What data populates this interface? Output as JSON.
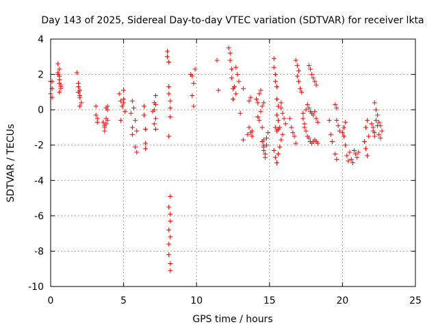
{
  "chart_data": {
    "type": "scatter",
    "title": "Day 143 of 2025, Sidereal Day-to-day VTEC variation (SDTVAR) for receiver lkta",
    "xlabel": "GPS time / hours",
    "ylabel": "SDTVAR / TECUs",
    "xlim": [
      0,
      25
    ],
    "ylim": [
      -10,
      4
    ],
    "xticks": [
      "0",
      "5",
      "10",
      "15",
      "20",
      "25"
    ],
    "yticks": [
      "4",
      "2",
      "0",
      "-2",
      "-4",
      "-6",
      "-8",
      "-10"
    ],
    "grid": true,
    "marker": "plus",
    "color": "#ff0000",
    "series": [
      {
        "name": "SDTVAR",
        "x": [
          0.0,
          0.0,
          0.0,
          0.1,
          0.1,
          0.1,
          0.5,
          0.5,
          0.6,
          0.6,
          0.6,
          0.6,
          0.7,
          0.7,
          0.5,
          0.6,
          0.7,
          1.8,
          1.9,
          1.9,
          2.0,
          2.0,
          2.1,
          1.9,
          2.0,
          2.0,
          3.1,
          3.1,
          3.2,
          3.2,
          3.6,
          3.7,
          3.7,
          3.8,
          3.8,
          3.9,
          3.7,
          3.8,
          3.9,
          3.9,
          4.7,
          4.8,
          4.9,
          5.0,
          5.0,
          5.1,
          5.0,
          4.8,
          5.5,
          5.6,
          5.6,
          5.7,
          5.6,
          5.8,
          5.9,
          5.8,
          5.9,
          6.4,
          6.4,
          6.5,
          6.5,
          6.5,
          7.0,
          7.1,
          7.2,
          7.1,
          7.2,
          7.2,
          7.1,
          7.2,
          8.0,
          8.0,
          8.1,
          8.1,
          8.1,
          8.2,
          8.2,
          8.2,
          8.1,
          8.2,
          8.1,
          8.2,
          8.2,
          8.1,
          8.2,
          8.1,
          8.1,
          8.2,
          8.2,
          9.6,
          9.7,
          9.7,
          9.8,
          9.8,
          9.9,
          11.4,
          11.5,
          12.2,
          12.3,
          12.3,
          12.4,
          12.4,
          12.5,
          12.5,
          12.7,
          12.8,
          12.9,
          12.6,
          12.7,
          13.2,
          13.0,
          13.2,
          13.5,
          13.6,
          13.7,
          13.8,
          13.6,
          13.7,
          13.8,
          14.1,
          14.2,
          14.2,
          14.3,
          14.3,
          14.4,
          14.5,
          14.6,
          14.6,
          14.6,
          14.7,
          14.7,
          14.8,
          14.8,
          14.9,
          14.4,
          14.5,
          14.6,
          14.5,
          14.6,
          15.3,
          15.3,
          15.4,
          15.4,
          15.5,
          15.5,
          15.6,
          15.5,
          15.6,
          15.7,
          15.8,
          15.8,
          15.9,
          16.0,
          16.1,
          15.4,
          15.5,
          15.6,
          15.3,
          15.4,
          15.5,
          15.6,
          15.7,
          15.8,
          15.9,
          16.4,
          16.5,
          16.6,
          16.7,
          16.8,
          16.8,
          16.9,
          17.0,
          16.9,
          17.0,
          17.1,
          17.2,
          17.3,
          17.3,
          17.4,
          17.5,
          17.6,
          17.7,
          17.8,
          17.9,
          18.0,
          18.1,
          18.2,
          18.3,
          17.7,
          17.8,
          17.9,
          18.0,
          18.1,
          18.2,
          17.5,
          17.6,
          17.7,
          17.8,
          17.9,
          18.0,
          18.1,
          18.2,
          18.3,
          17.4,
          19.1,
          19.2,
          19.3,
          19.5,
          19.6,
          19.6,
          19.7,
          19.8,
          19.5,
          19.6,
          20.0,
          20.1,
          20.2,
          20.3,
          20.4,
          20.5,
          20.6,
          20.7,
          20.8,
          20.9,
          21.0,
          21.1,
          20.1,
          20.2,
          21.5,
          21.6,
          21.7,
          21.8,
          21.6,
          21.7,
          22.0,
          22.1,
          22.2,
          22.3,
          22.4,
          22.5,
          22.6,
          22.7,
          22.2,
          22.3,
          22.4,
          22.5,
          22.6,
          22.1,
          22.2
        ],
        "y": [
          1.6,
          1.6,
          0.9,
          1.6,
          1.2,
          0.7,
          2.6,
          2.0,
          1.5,
          1.0,
          2.3,
          1.9,
          1.4,
          1.2,
          2.1,
          1.7,
          1.3,
          2.1,
          1.5,
          1.0,
          0.7,
          0.2,
          0.4,
          1.3,
          1.1,
          0.8,
          0.2,
          -0.3,
          -0.5,
          -0.7,
          -0.7,
          -1.2,
          -0.9,
          -0.5,
          0.1,
          0.2,
          -1.0,
          -0.8,
          -0.6,
          0.0,
          0.9,
          0.5,
          0.2,
          1.1,
          0.4,
          -0.1,
          0.6,
          -0.6,
          -0.2,
          -1.0,
          -1.4,
          0.1,
          0.5,
          -0.6,
          -1.2,
          -2.1,
          -2.4,
          0.2,
          -0.3,
          -1.1,
          -1.9,
          -2.2,
          -0.1,
          0.4,
          0.8,
          -0.8,
          -1.1,
          -0.5,
          0.0,
          0.3,
          3.3,
          3.0,
          2.7,
          1.3,
          0.9,
          0.5,
          0.1,
          -0.4,
          -1.5,
          -4.9,
          -5.5,
          -5.9,
          -6.3,
          -6.8,
          -7.2,
          -7.6,
          -8.2,
          -8.7,
          -9.1,
          2.0,
          1.9,
          0.8,
          1.5,
          0.2,
          2.3,
          2.8,
          1.1,
          3.5,
          3.2,
          2.8,
          2.3,
          1.8,
          1.2,
          0.6,
          2.4,
          2.0,
          1.6,
          1.3,
          0.9,
          1.2,
          -0.2,
          -1.7,
          -1.4,
          0.5,
          0.7,
          -1.2,
          -1.0,
          -1.3,
          -1.5,
          0.6,
          0.4,
          -0.4,
          -0.6,
          0.9,
          1.1,
          -1.0,
          -1.7,
          -2.1,
          -2.3,
          -2.5,
          -2.7,
          -2.0,
          -1.6,
          -1.3,
          -0.1,
          0.2,
          0.4,
          -1.8,
          -2.0,
          2.9,
          2.4,
          2.0,
          1.6,
          1.3,
          0.6,
          0.2,
          -0.3,
          -0.6,
          -1.0,
          0.4,
          0.1,
          -0.2,
          -0.5,
          -0.8,
          -1.0,
          -1.2,
          -1.1,
          -2.3,
          -2.7,
          -3.0,
          -2.5,
          -2.1,
          -1.7,
          -1.4,
          -0.5,
          -1.0,
          -1.3,
          -1.5,
          -1.9,
          2.8,
          2.5,
          2.2,
          1.9,
          1.6,
          1.2,
          1.0,
          -0.2,
          -0.5,
          -1.0,
          -1.2,
          -1.5,
          -1.6,
          -1.8,
          -1.9,
          -1.8,
          -1.7,
          -1.8,
          -1.9,
          2.5,
          2.3,
          2.0,
          1.8,
          1.6,
          1.4,
          0.0,
          0.3,
          0.1,
          -0.1,
          -0.2,
          -0.3,
          -0.1,
          -0.5,
          -0.7,
          -0.8,
          -0.6,
          -1.4,
          -1.8,
          -2.5,
          -2.8,
          -0.6,
          -0.9,
          -1.2,
          0.3,
          0.1,
          -1.3,
          -1.5,
          -2.0,
          -2.6,
          -2.9,
          -2.4,
          -2.8,
          -3.0,
          -2.3,
          -2.5,
          -2.7,
          -2.4,
          -1.0,
          -0.7,
          -1.8,
          -2.2,
          -2.6,
          -1.5,
          -1.0,
          -0.6,
          -0.8,
          -1.2,
          -1.5,
          -0.6,
          -0.9,
          -1.4,
          -1.6,
          -1.2,
          0.4,
          0.0,
          -0.3,
          -0.7,
          -0.9,
          -1.0,
          -1.3
        ]
      }
    ]
  }
}
